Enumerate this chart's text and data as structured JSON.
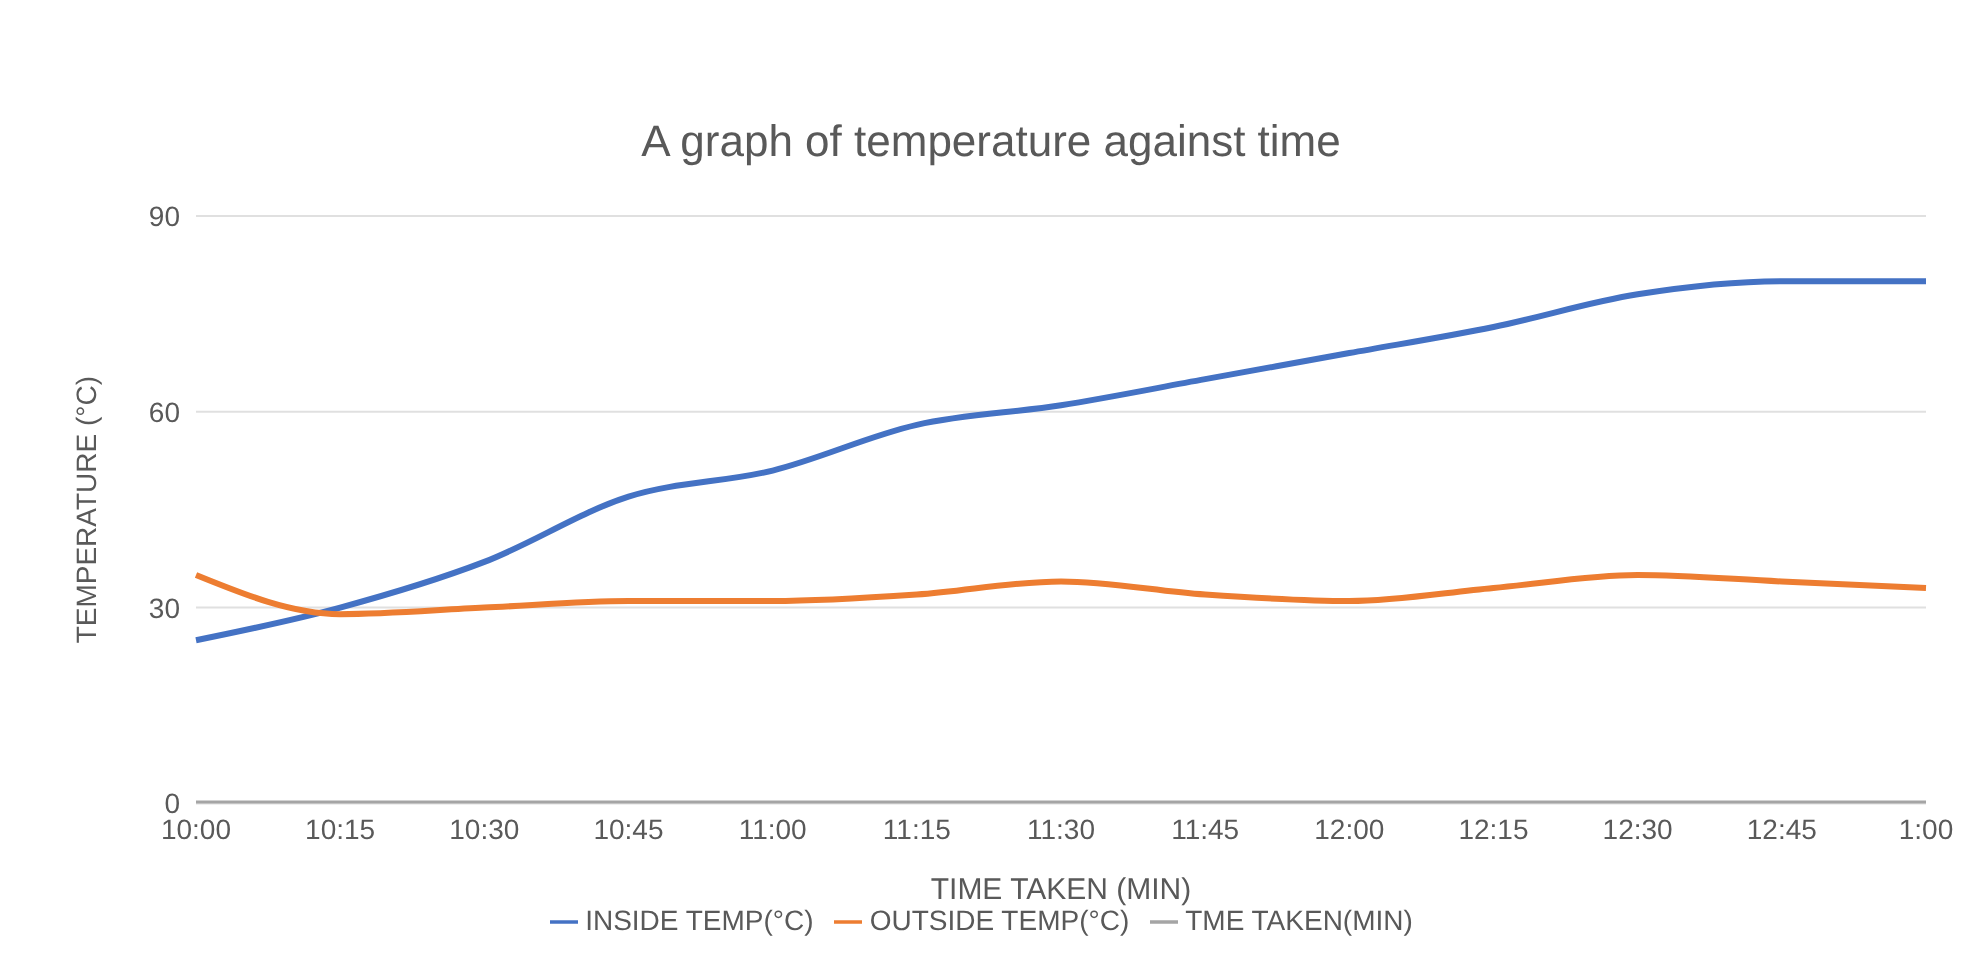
{
  "chart_data": {
    "type": "line",
    "title": "A graph of temperature against time",
    "xlabel": "TIME TAKEN (MIN)",
    "ylabel": "TEMPERATURE (°C)",
    "categories": [
      "10:00",
      "10:15",
      "10:30",
      "10:45",
      "11:00",
      "11:15",
      "11:30",
      "11:45",
      "12:00",
      "12:15",
      "12:30",
      "12:45",
      "1:00"
    ],
    "series": [
      {
        "name": "INSIDE TEMP(°C)",
        "color": "#4472c4",
        "values": [
          25,
          30,
          37,
          47,
          51,
          58,
          61,
          65,
          69,
          73,
          78,
          80,
          80
        ]
      },
      {
        "name": "OUTSIDE TEMP(°C)",
        "color": "#ed7d31",
        "values": [
          35,
          29,
          30,
          31,
          31,
          32,
          34,
          32,
          31,
          33,
          35,
          34,
          33
        ]
      },
      {
        "name": "TME TAKEN(MIN)",
        "color": "#a5a5a5",
        "values": [
          0,
          0,
          0,
          0,
          0,
          0,
          0,
          0,
          0,
          0,
          0,
          0,
          0
        ]
      }
    ],
    "ylim": [
      0,
      90
    ],
    "yticks": [
      0,
      30,
      60,
      90
    ],
    "grid": "y",
    "legend": "bottom",
    "marker": "none",
    "line_style": "solid"
  }
}
